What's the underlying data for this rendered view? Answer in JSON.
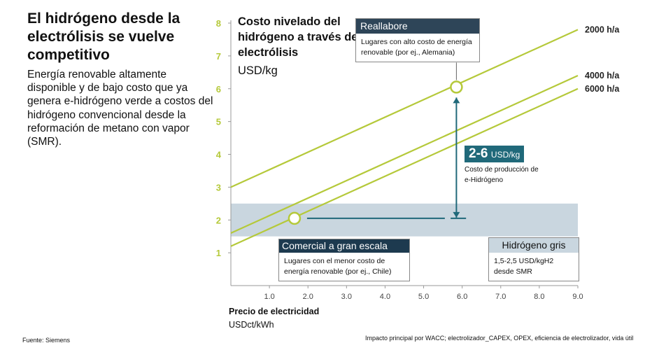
{
  "headline": "El hidrógeno desde la electrólisis se vuelve competitivo",
  "description": "Energía renovable altamente disponible y de bajo costo que ya genera e-hidrógeno verde a costos del hidrógeno convencional desde la reformación de metano con vapor (SMR).",
  "source": "Fuente: Siemens",
  "footnote": "Impacto principal por WACC; electrolizador_CAPEX, OPEX, eficiencia de electrolizador, vida útil",
  "chart_data": {
    "type": "line",
    "title": "Costo nivelado del hidrógeno a través de electrólisis",
    "ylabel": "USD/kg",
    "xlabel": "Precio de electricidad",
    "xunit": "USDct/kWh",
    "xlim": [
      0,
      9
    ],
    "ylim": [
      0,
      8
    ],
    "xticks": [
      "1.0",
      "2.0",
      "3.0",
      "4.0",
      "5.0",
      "6.0",
      "7.0",
      "8.0",
      "9.0"
    ],
    "yticks": [
      "1",
      "2",
      "3",
      "4",
      "5",
      "6",
      "7",
      "8"
    ],
    "series": [
      {
        "name": "2000 h/a",
        "x": [
          0,
          9
        ],
        "y": [
          3.0,
          7.8
        ]
      },
      {
        "name": "4000 h/a",
        "x": [
          0,
          9
        ],
        "y": [
          1.6,
          6.4
        ]
      },
      {
        "name": "6000 h/a",
        "x": [
          0,
          9
        ],
        "y": [
          1.2,
          6.0
        ]
      }
    ],
    "grey_band": [
      1.5,
      2.5
    ],
    "highlight_points": [
      {
        "x": 1.65,
        "y": 2.05
      },
      {
        "x": 5.85,
        "y": 6.05
      }
    ],
    "cost_range": "2-6",
    "cost_unit": "USD/kg",
    "cost_label": "Costo de producción de e-Hidrógeno",
    "annotations": {
      "realabore": {
        "title": "Reallabore",
        "text": "Lugares con alto costo de energía renovable (por ej., Alemania)"
      },
      "comercial": {
        "title": "Comercial a gran escala",
        "text": "Lugares con el menor costo de energía renovable (por ej., Chile)"
      },
      "gris": {
        "title": "Hidrógeno gris",
        "text": "1,5-2,5 USD/kgH2 desde SMR"
      }
    },
    "grid": false,
    "legend": "line-end labels"
  },
  "colors": {
    "line": "#b5c93a",
    "band": "#c9d6df",
    "arrow": "#20697a",
    "axis_label": "#b5c93a",
    "dark_header": "#1d3a4f"
  }
}
